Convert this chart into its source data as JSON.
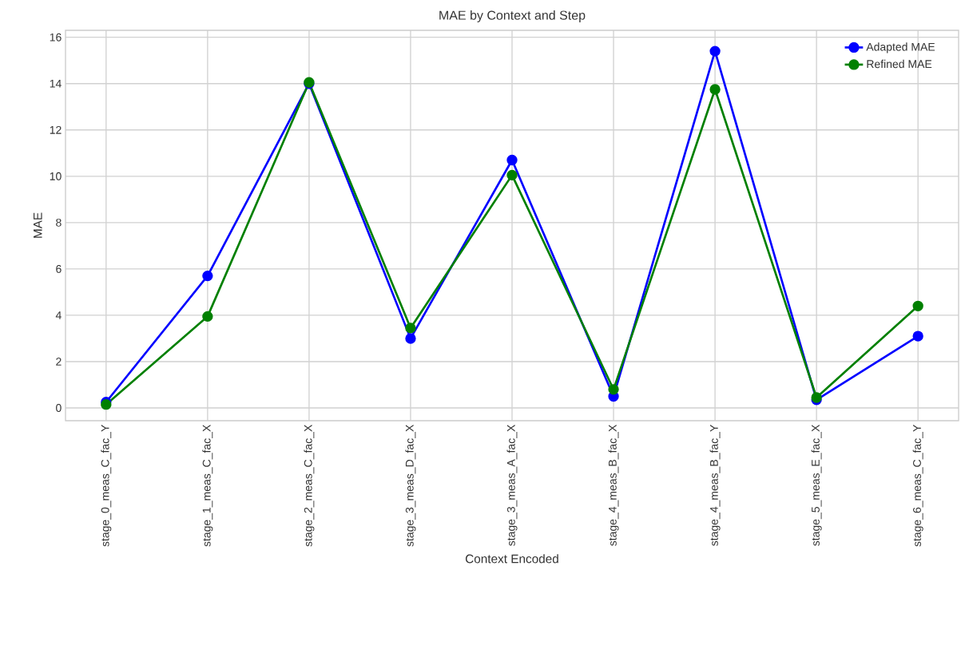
{
  "chart_data": {
    "type": "line",
    "title": "MAE by Context and Step",
    "xlabel": "Context Encoded",
    "ylabel": "MAE",
    "categories": [
      "stage_0_meas_C_fac_Y",
      "stage_1_meas_C_fac_X",
      "stage_2_meas_C_fac_X",
      "stage_3_meas_D_fac_X",
      "stage_3_meas_A_fac_X",
      "stage_4_meas_B_fac_X",
      "stage_4_meas_B_fac_Y",
      "stage_5_meas_E_fac_X",
      "stage_6_meas_C_fac_Y"
    ],
    "series": [
      {
        "name": "Adapted MAE",
        "color": "#0000ff",
        "values": [
          0.25,
          5.7,
          14.0,
          3.0,
          10.7,
          0.5,
          15.4,
          0.35,
          3.1
        ]
      },
      {
        "name": "Refined MAE",
        "color": "#008000",
        "values": [
          0.15,
          3.95,
          14.05,
          3.45,
          10.05,
          0.8,
          13.75,
          0.45,
          4.4
        ]
      }
    ],
    "ylim": [
      -0.55,
      16.3
    ],
    "yticks": [
      0,
      2,
      4,
      6,
      8,
      10,
      12,
      14,
      16
    ],
    "grid": true,
    "legend": "top right",
    "marker": "circle",
    "line_style": "solid"
  }
}
